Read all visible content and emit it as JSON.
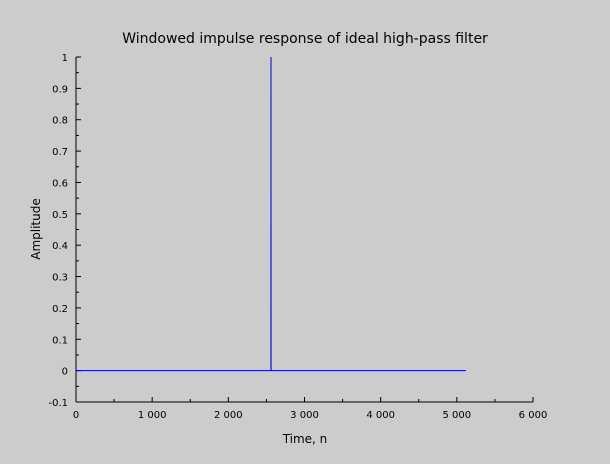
{
  "chart_data": {
    "type": "line",
    "title": "Windowed impulse response of ideal high-pass filter",
    "xlabel": "Time, n",
    "ylabel": "Amplitude",
    "xlim": [
      0,
      6000
    ],
    "ylim": [
      -0.1,
      1
    ],
    "x_ticks": [
      0,
      1000,
      2000,
      3000,
      4000,
      5000,
      6000
    ],
    "x_tick_labels": [
      "0",
      "1 000",
      "2 000",
      "3 000",
      "4 000",
      "5 000",
      "6 000"
    ],
    "y_ticks": [
      -0.1,
      0,
      0.1,
      0.2,
      0.3,
      0.4,
      0.5,
      0.6,
      0.7,
      0.8,
      0.9,
      1
    ],
    "y_tick_labels": [
      "-0.1",
      "0",
      "0.1",
      "0.2",
      "0.3",
      "0.4",
      "0.5",
      "0.6",
      "0.7",
      "0.8",
      "0.9",
      "1"
    ],
    "grid": false,
    "legend": "none",
    "series": [
      {
        "color": "#0000cc",
        "x": [
          0,
          2559,
          2560,
          2561,
          5120
        ],
        "y": [
          0,
          0,
          1,
          0,
          0
        ]
      }
    ]
  }
}
